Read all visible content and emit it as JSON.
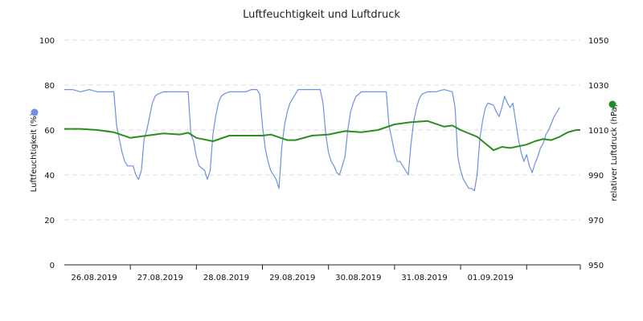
{
  "chart_data": {
    "type": "line",
    "title": "Luftfeuchtigkeit und Luftdruck",
    "y_left": {
      "label": "Luftfeuchtigkeit (%)",
      "min": 0,
      "max": 100,
      "ticks": [
        0,
        20,
        40,
        60,
        80,
        100
      ]
    },
    "y_right": {
      "label": "relativer Luftdruck (hPa)",
      "min": 950,
      "max": 1050,
      "ticks": [
        950,
        970,
        990,
        1010,
        1030,
        1050
      ]
    },
    "x": {
      "start": "25.08.2019 12:00",
      "end": "02.09.2019 07:30",
      "tick_labels": [
        "26.08.2019",
        "27.08.2019",
        "28.08.2019",
        "29.08.2019",
        "30.08.2019",
        "31.08.2019",
        "01.09.2019"
      ],
      "tick_dates": [
        "26.08.2019 12:00",
        "27.08.2019 12:00",
        "28.08.2019 12:00",
        "29.08.2019 12:00",
        "30.08.2019 12:00",
        "31.08.2019 12:00",
        "01.09.2019 12:00"
      ]
    },
    "grid": true,
    "series": [
      {
        "axis": "left",
        "color": "#6f8fe0",
        "points": [
          [
            "25.08.2019 12:00",
            78
          ],
          [
            "25.08.2019 15:00",
            78
          ],
          [
            "25.08.2019 18:00",
            77
          ],
          [
            "25.08.2019 21:00",
            78
          ],
          [
            "26.08.2019 00:00",
            77
          ],
          [
            "26.08.2019 03:00",
            77
          ],
          [
            "26.08.2019 06:00",
            77
          ],
          [
            "26.08.2019 07:00",
            62
          ],
          [
            "26.08.2019 08:00",
            56
          ],
          [
            "26.08.2019 09:00",
            50
          ],
          [
            "26.08.2019 10:00",
            46
          ],
          [
            "26.08.2019 11:00",
            44
          ],
          [
            "26.08.2019 13:00",
            44
          ],
          [
            "26.08.2019 14:00",
            40
          ],
          [
            "26.08.2019 15:00",
            38
          ],
          [
            "26.08.2019 16:00",
            42
          ],
          [
            "26.08.2019 17:00",
            56
          ],
          [
            "26.08.2019 18:00",
            60
          ],
          [
            "26.08.2019 19:00",
            66
          ],
          [
            "26.08.2019 20:00",
            72
          ],
          [
            "26.08.2019 21:00",
            75
          ],
          [
            "26.08.2019 22:00",
            76
          ],
          [
            "27.08.2019 00:00",
            77
          ],
          [
            "27.08.2019 03:00",
            77
          ],
          [
            "27.08.2019 06:00",
            77
          ],
          [
            "27.08.2019 09:00",
            77
          ],
          [
            "27.08.2019 10:00",
            58
          ],
          [
            "27.08.2019 11:00",
            55
          ],
          [
            "27.08.2019 12:00",
            48
          ],
          [
            "27.08.2019 13:00",
            44
          ],
          [
            "27.08.2019 14:00",
            43
          ],
          [
            "27.08.2019 15:00",
            42
          ],
          [
            "27.08.2019 16:00",
            38
          ],
          [
            "27.08.2019 17:00",
            42
          ],
          [
            "27.08.2019 18:00",
            58
          ],
          [
            "27.08.2019 19:00",
            66
          ],
          [
            "27.08.2019 20:00",
            72
          ],
          [
            "27.08.2019 21:00",
            75
          ],
          [
            "27.08.2019 22:00",
            76
          ],
          [
            "28.08.2019 00:00",
            77
          ],
          [
            "28.08.2019 03:00",
            77
          ],
          [
            "28.08.2019 06:00",
            77
          ],
          [
            "28.08.2019 08:00",
            78
          ],
          [
            "28.08.2019 10:00",
            78
          ],
          [
            "28.08.2019 11:00",
            76
          ],
          [
            "28.08.2019 12:00",
            62
          ],
          [
            "28.08.2019 13:00",
            52
          ],
          [
            "28.08.2019 14:00",
            46
          ],
          [
            "28.08.2019 15:00",
            42
          ],
          [
            "28.08.2019 16:00",
            40
          ],
          [
            "28.08.2019 17:00",
            38
          ],
          [
            "28.08.2019 18:00",
            34
          ],
          [
            "28.08.2019 19:00",
            52
          ],
          [
            "28.08.2019 20:00",
            62
          ],
          [
            "28.08.2019 21:00",
            68
          ],
          [
            "28.08.2019 22:00",
            72
          ],
          [
            "28.08.2019 23:00",
            74
          ],
          [
            "29.08.2019 00:00",
            76
          ],
          [
            "29.08.2019 01:00",
            78
          ],
          [
            "29.08.2019 06:00",
            78
          ],
          [
            "29.08.2019 09:00",
            78
          ],
          [
            "29.08.2019 10:00",
            72
          ],
          [
            "29.08.2019 11:00",
            58
          ],
          [
            "29.08.2019 12:00",
            50
          ],
          [
            "29.08.2019 13:00",
            46
          ],
          [
            "29.08.2019 14:00",
            44
          ],
          [
            "29.08.2019 15:00",
            41
          ],
          [
            "29.08.2019 16:00",
            40
          ],
          [
            "29.08.2019 17:00",
            44
          ],
          [
            "29.08.2019 18:00",
            48
          ],
          [
            "29.08.2019 19:00",
            60
          ],
          [
            "29.08.2019 20:00",
            68
          ],
          [
            "29.08.2019 21:00",
            72
          ],
          [
            "29.08.2019 22:00",
            75
          ],
          [
            "30.08.2019 00:00",
            77
          ],
          [
            "30.08.2019 03:00",
            77
          ],
          [
            "30.08.2019 06:00",
            77
          ],
          [
            "30.08.2019 09:00",
            77
          ],
          [
            "30.08.2019 10:00",
            62
          ],
          [
            "30.08.2019 11:00",
            56
          ],
          [
            "30.08.2019 12:00",
            50
          ],
          [
            "30.08.2019 13:00",
            46
          ],
          [
            "30.08.2019 14:00",
            46
          ],
          [
            "30.08.2019 15:00",
            44
          ],
          [
            "30.08.2019 16:00",
            42
          ],
          [
            "30.08.2019 17:00",
            40
          ],
          [
            "30.08.2019 18:00",
            54
          ],
          [
            "30.08.2019 19:00",
            64
          ],
          [
            "30.08.2019 20:00",
            70
          ],
          [
            "30.08.2019 21:00",
            74
          ],
          [
            "30.08.2019 22:00",
            76
          ],
          [
            "31.08.2019 00:00",
            77
          ],
          [
            "31.08.2019 03:00",
            77
          ],
          [
            "31.08.2019 06:00",
            78
          ],
          [
            "31.08.2019 09:00",
            77
          ],
          [
            "31.08.2019 10:00",
            70
          ],
          [
            "31.08.2019 11:00",
            48
          ],
          [
            "31.08.2019 12:00",
            42
          ],
          [
            "31.08.2019 13:00",
            38
          ],
          [
            "31.08.2019 14:00",
            36
          ],
          [
            "31.08.2019 15:00",
            34
          ],
          [
            "31.08.2019 16:00",
            34
          ],
          [
            "31.08.2019 17:00",
            33
          ],
          [
            "31.08.2019 18:00",
            40
          ],
          [
            "31.08.2019 19:00",
            56
          ],
          [
            "31.08.2019 20:00",
            64
          ],
          [
            "31.08.2019 21:00",
            70
          ],
          [
            "31.08.2019 22:00",
            72
          ],
          [
            "01.09.2019 00:00",
            71
          ],
          [
            "01.09.2019 01:00",
            68
          ],
          [
            "01.09.2019 02:00",
            66
          ],
          [
            "01.09.2019 03:00",
            70
          ],
          [
            "01.09.2019 04:00",
            75
          ],
          [
            "01.09.2019 05:00",
            72
          ],
          [
            "01.09.2019 06:00",
            70
          ],
          [
            "01.09.2019 07:00",
            72
          ],
          [
            "01.09.2019 08:00",
            64
          ],
          [
            "01.09.2019 09:00",
            56
          ],
          [
            "01.09.2019 10:00",
            50
          ],
          [
            "01.09.2019 11:00",
            46
          ],
          [
            "01.09.2019 12:00",
            49
          ],
          [
            "01.09.2019 13:00",
            44
          ],
          [
            "01.09.2019 14:00",
            41
          ],
          [
            "01.09.2019 15:00",
            45
          ],
          [
            "01.09.2019 16:00",
            48
          ],
          [
            "01.09.2019 17:00",
            52
          ],
          [
            "01.09.2019 18:00",
            54
          ],
          [
            "01.09.2019 19:00",
            58
          ],
          [
            "01.09.2019 20:00",
            60
          ],
          [
            "01.09.2019 21:00",
            63
          ],
          [
            "01.09.2019 22:00",
            66
          ],
          [
            "02.09.2019 00:00",
            70
          ]
        ]
      },
      {
        "axis": "right",
        "color": "#2a8f1e",
        "points": [
          [
            "25.08.2019 12:00",
            1010.5
          ],
          [
            "25.08.2019 18:00",
            1010.5
          ],
          [
            "26.08.2019 00:00",
            1010
          ],
          [
            "26.08.2019 06:00",
            1009
          ],
          [
            "26.08.2019 12:00",
            1006.5
          ],
          [
            "26.08.2019 18:00",
            1007.5
          ],
          [
            "27.08.2019 00:00",
            1008.5
          ],
          [
            "27.08.2019 06:00",
            1008
          ],
          [
            "27.08.2019 09:00",
            1008.8
          ],
          [
            "27.08.2019 12:00",
            1006.5
          ],
          [
            "27.08.2019 18:00",
            1005
          ],
          [
            "28.08.2019 00:00",
            1007.5
          ],
          [
            "28.08.2019 06:00",
            1007.5
          ],
          [
            "28.08.2019 12:00",
            1007.5
          ],
          [
            "28.08.2019 15:00",
            1008
          ],
          [
            "28.08.2019 21:00",
            1005.5
          ],
          [
            "29.08.2019 00:00",
            1005.5
          ],
          [
            "29.08.2019 06:00",
            1007.5
          ],
          [
            "29.08.2019 12:00",
            1008
          ],
          [
            "29.08.2019 18:00",
            1009.5
          ],
          [
            "30.08.2019 00:00",
            1009
          ],
          [
            "30.08.2019 06:00",
            1010
          ],
          [
            "30.08.2019 12:00",
            1012.5
          ],
          [
            "30.08.2019 18:00",
            1013.5
          ],
          [
            "31.08.2019 00:00",
            1014
          ],
          [
            "31.08.2019 06:00",
            1011.5
          ],
          [
            "31.08.2019 09:00",
            1012
          ],
          [
            "31.08.2019 12:00",
            1010
          ],
          [
            "31.08.2019 18:00",
            1007
          ],
          [
            "01.09.2019 00:00",
            1001
          ],
          [
            "01.09.2019 03:00",
            1002.5
          ],
          [
            "01.09.2019 06:00",
            1002
          ],
          [
            "01.09.2019 12:00",
            1003.5
          ],
          [
            "01.09.2019 15:00",
            1005
          ],
          [
            "01.09.2019 18:00",
            1006
          ],
          [
            "01.09.2019 21:00",
            1005.5
          ],
          [
            "02.09.2019 00:00",
            1007
          ],
          [
            "02.09.2019 03:00",
            1009
          ],
          [
            "02.09.2019 06:00",
            1010
          ],
          [
            "02.09.2019 07:30",
            1010
          ]
        ]
      }
    ]
  }
}
